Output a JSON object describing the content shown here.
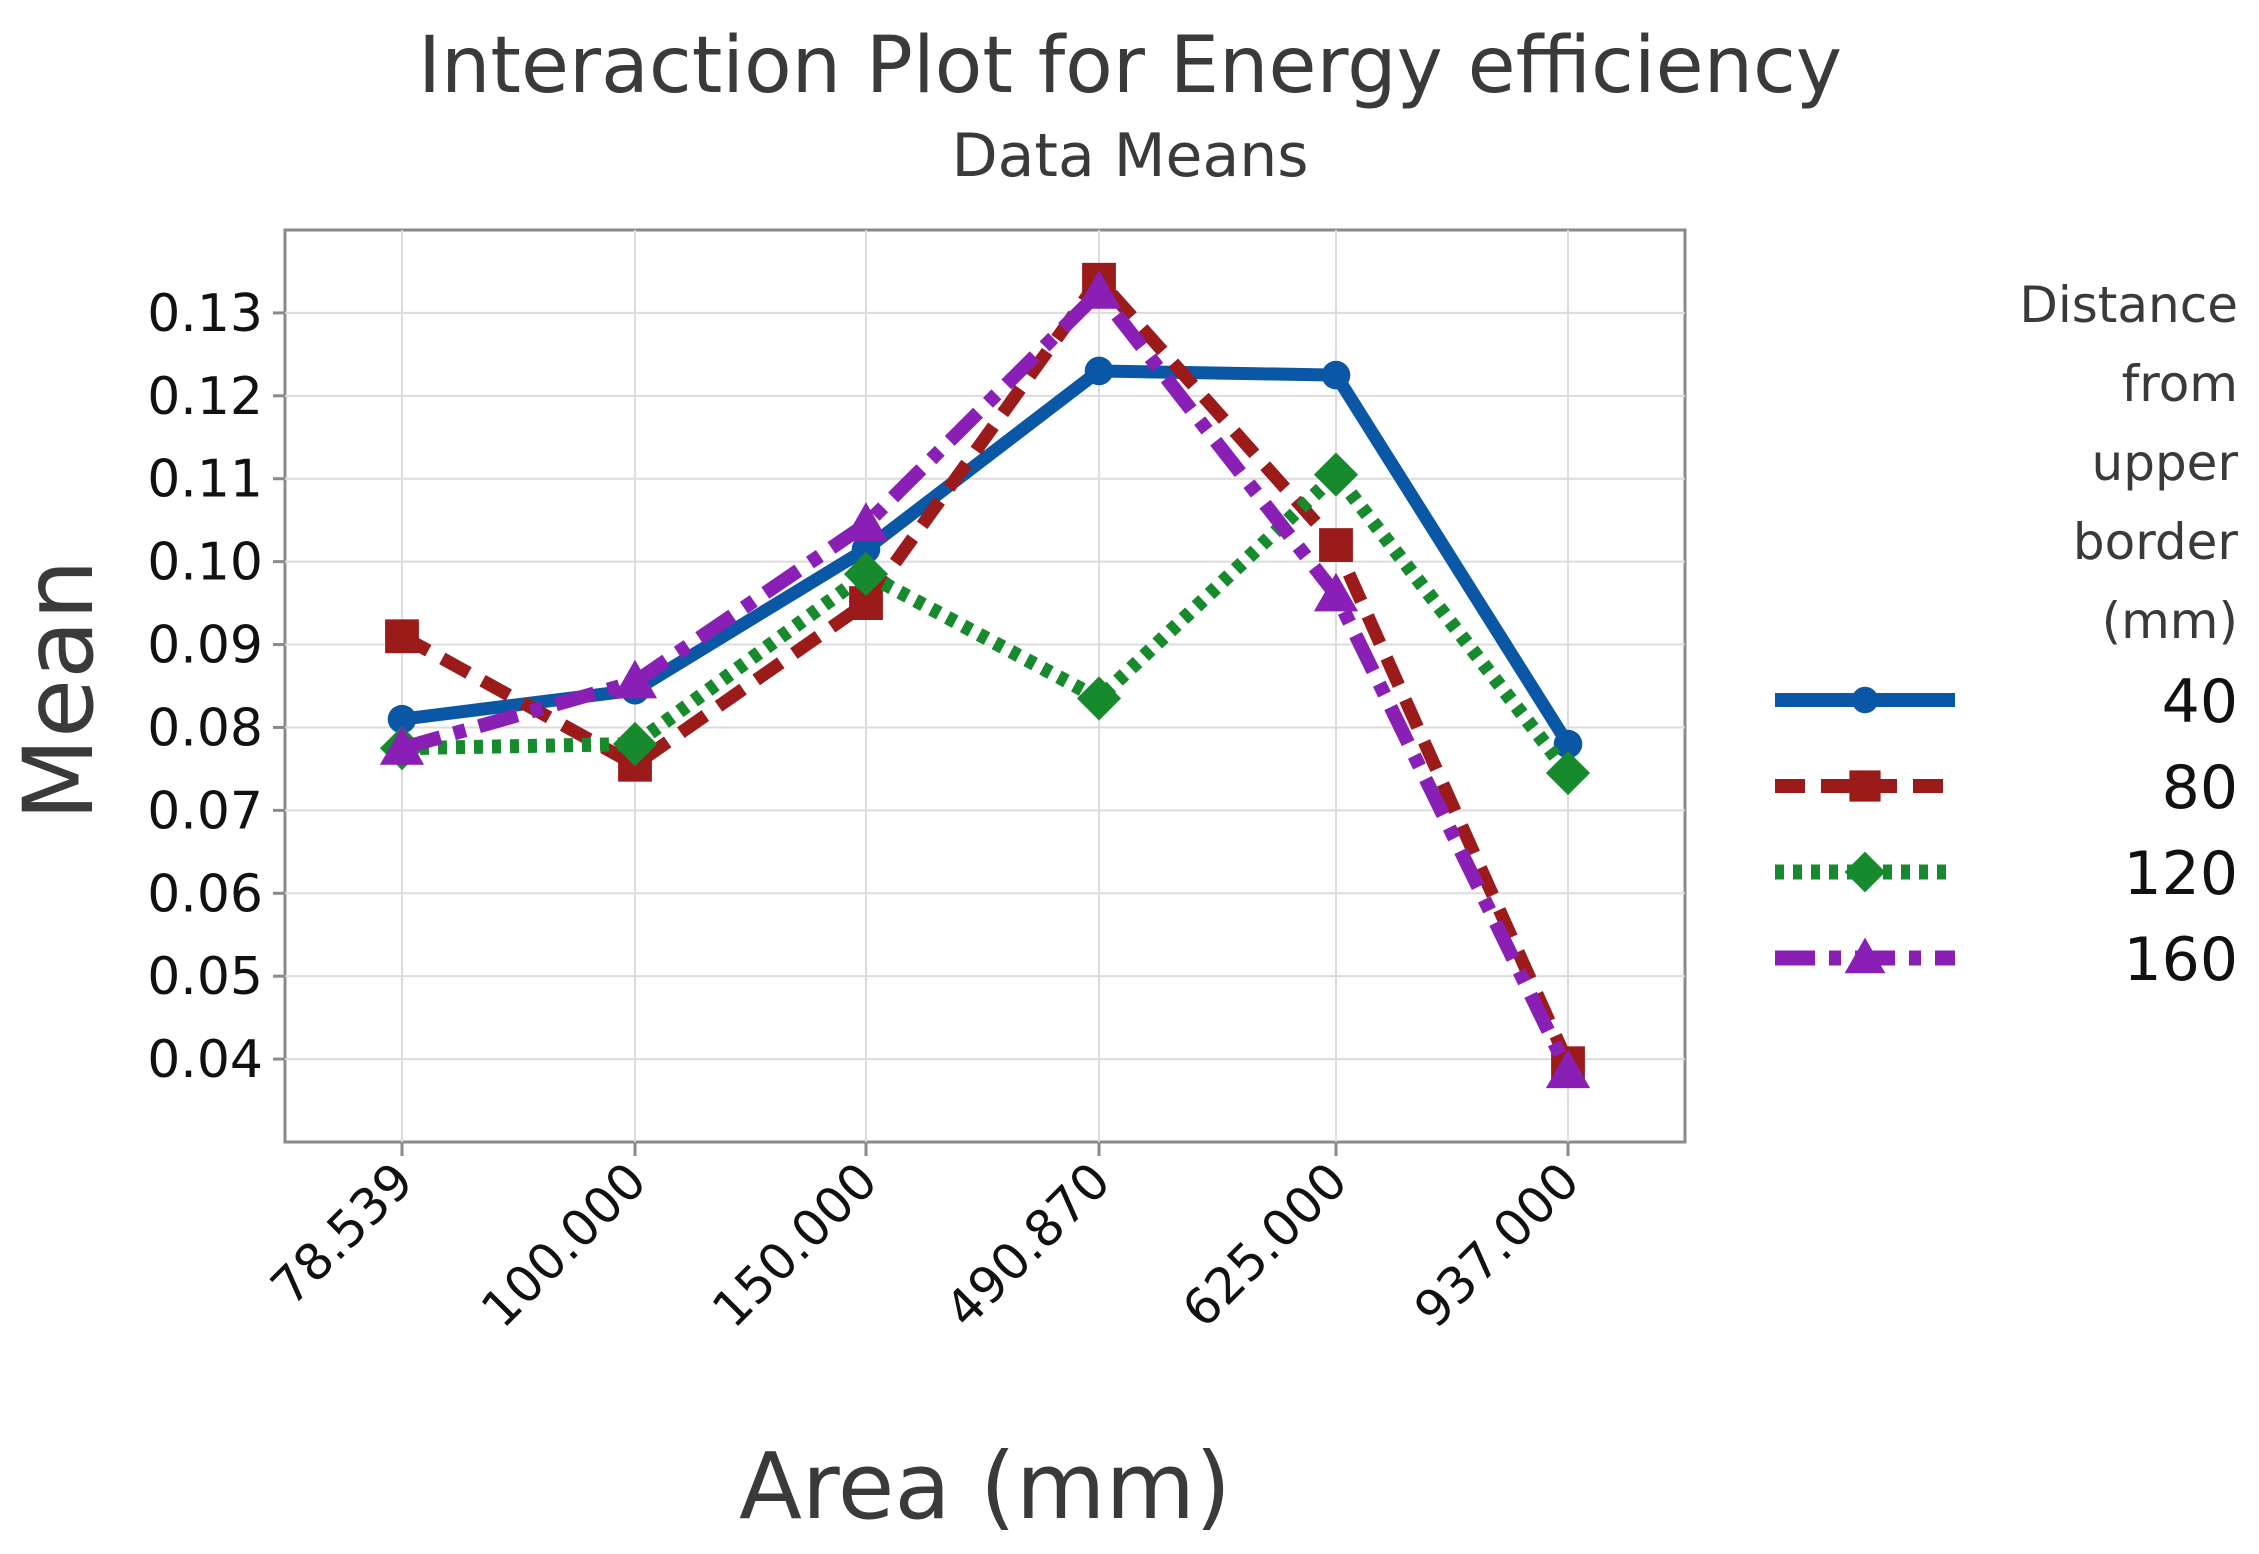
{
  "chart_data": {
    "type": "line",
    "title": "Interaction Plot for Energy efficiency",
    "subtitle": "Data Means",
    "xlabel": "Area (mm)",
    "ylabel": "Mean",
    "categories": [
      "78.539",
      "100.000",
      "150.000",
      "490.870",
      "625.000",
      "937.000"
    ],
    "ylim": [
      0.03,
      0.14
    ],
    "yticks": [
      "0.04",
      "0.05",
      "0.06",
      "0.07",
      "0.08",
      "0.09",
      "0.10",
      "0.11",
      "0.12",
      "0.13"
    ],
    "grid": true,
    "legend": {
      "title_lines": [
        "Distance",
        "from",
        "upper",
        "border",
        "(mm)"
      ],
      "placement": "right"
    },
    "series": [
      {
        "name": "40",
        "color": "#0a57a5",
        "line_style": "solid",
        "marker": "circle",
        "values": [
          0.081,
          0.0845,
          0.1015,
          0.123,
          0.1225,
          0.078
        ]
      },
      {
        "name": "80",
        "color": "#9b1b1b",
        "line_style": "dashed",
        "marker": "square",
        "values": [
          0.091,
          0.0755,
          0.095,
          0.134,
          0.102,
          0.0395
        ]
      },
      {
        "name": "120",
        "color": "#178a2e",
        "line_style": "dotted",
        "marker": "diamond",
        "values": [
          0.0775,
          0.078,
          0.0985,
          0.0835,
          0.1105,
          0.0745
        ]
      },
      {
        "name": "160",
        "color": "#8a1fb5",
        "line_style": "dashdot",
        "marker": "triangle",
        "values": [
          0.0775,
          0.0855,
          0.1045,
          0.1325,
          0.096,
          0.0385
        ]
      }
    ]
  }
}
